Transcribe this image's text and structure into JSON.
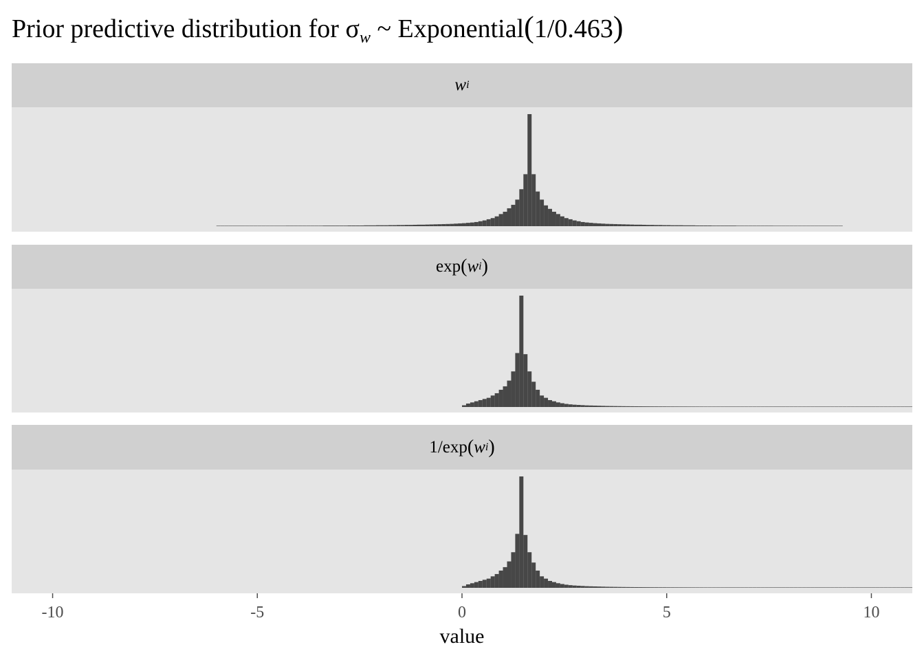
{
  "title_parts": {
    "prefix": "Prior predictive distribution for σ",
    "sub": "w",
    "middle": " ~ Exponential",
    "open": "(",
    "arg": "1/0.463",
    "close": ")"
  },
  "facets": [
    {
      "key": "w",
      "label_parts": {
        "pre": "",
        "open": "",
        "w": "w",
        "sub": "i",
        "close": ""
      }
    },
    {
      "key": "exp_w",
      "label_parts": {
        "pre": "exp",
        "open": "(",
        "w": "w",
        "sub": "i",
        "close": ")"
      }
    },
    {
      "key": "inv_exp_w",
      "label_parts": {
        "pre": "1/exp",
        "open": "(",
        "w": "w",
        "sub": "i",
        "close": ")"
      }
    }
  ],
  "colors": {
    "bar": "#474747",
    "panel": "#e5e5e5",
    "strip": "#d0d0d0",
    "tick": "#4d4d4d"
  },
  "chart_data": {
    "type": "bar",
    "subtype": "histogram (faceted, stacked vertically, shared x axis)",
    "xlabel": "value",
    "ylabel": "",
    "xlim": [
      -11,
      11
    ],
    "x_ticks": [
      -10,
      -5,
      0,
      5,
      10
    ],
    "x_tick_labels": [
      "-10",
      "-5",
      "0",
      "5",
      "10"
    ],
    "grid": false,
    "bin_width": 0.1,
    "series": [
      {
        "facet": "w",
        "bin_start": -6.0,
        "values": [
          0.2,
          0.2,
          0.2,
          0.2,
          0.2,
          0.3,
          0.3,
          0.3,
          0.3,
          0.3,
          0.3,
          0.3,
          0.3,
          0.3,
          0.3,
          0.3,
          0.3,
          0.4,
          0.4,
          0.4,
          0.4,
          0.4,
          0.4,
          0.4,
          0.4,
          0.4,
          0.5,
          0.5,
          0.5,
          0.5,
          0.5,
          0.5,
          0.6,
          0.6,
          0.6,
          0.6,
          0.7,
          0.7,
          0.7,
          0.8,
          0.8,
          0.8,
          0.9,
          0.9,
          1.0,
          1.0,
          1.1,
          1.1,
          1.2,
          1.3,
          1.3,
          1.4,
          1.5,
          1.6,
          1.7,
          1.8,
          1.9,
          2.0,
          2.2,
          2.4,
          2.6,
          2.9,
          3.2,
          3.6,
          4.3,
          5.0,
          6.0,
          7.0,
          8.5,
          10.5,
          12.5,
          15.5,
          18.5,
          23,
          32,
          45,
          97,
          45,
          30,
          23,
          18,
          15,
          12.5,
          10.5,
          8.5,
          7.0,
          6.0,
          5.0,
          4.3,
          3.6,
          3.2,
          2.9,
          2.6,
          2.4,
          2.2,
          2.0,
          1.9,
          1.8,
          1.7,
          1.6,
          1.5,
          1.4,
          1.3,
          1.3,
          1.2,
          1.1,
          1.1,
          1.0,
          1.0,
          0.9,
          0.9,
          0.8,
          0.8,
          0.8,
          0.7,
          0.7,
          0.7,
          0.6,
          0.6,
          0.6,
          0.6,
          0.5,
          0.5,
          0.5,
          0.5,
          0.5,
          0.5,
          0.4,
          0.4,
          0.4,
          0.4,
          0.4,
          0.4,
          0.4,
          0.4,
          0.4,
          0.3,
          0.3,
          0.3,
          0.3,
          0.3,
          0.3,
          0.3,
          0.3,
          0.3,
          0.3,
          0.3,
          0.3,
          0.2,
          0.2,
          0.2,
          0.2,
          0.2
        ]
      },
      {
        "facet": "exp_w",
        "bin_start": 0.0,
        "values": [
          1.5,
          3,
          4,
          5,
          6,
          7,
          8,
          10,
          12,
          15,
          18,
          23,
          31,
          47,
          97,
          46,
          31,
          22,
          15,
          10,
          8,
          6,
          5,
          4,
          3.3,
          2.7,
          2.3,
          2.0,
          1.8,
          1.6,
          1.4,
          1.3,
          1.2,
          1.1,
          1.0,
          0.9,
          0.85,
          0.8,
          0.75,
          0.7,
          0.66,
          0.63,
          0.6,
          0.58,
          0.55,
          0.53,
          0.51,
          0.5,
          0.48,
          0.47,
          0.45,
          0.44,
          0.43,
          0.42,
          0.41,
          0.4,
          0.39,
          0.38,
          0.37,
          0.36,
          0.35,
          0.34,
          0.33,
          0.32,
          0.31,
          0.3,
          0.3,
          0.29,
          0.28,
          0.28,
          0.27,
          0.27,
          0.26,
          0.26,
          0.25,
          0.25,
          0.24,
          0.24,
          0.23,
          0.23,
          0.22,
          0.22,
          0.22,
          0.21,
          0.21,
          0.21,
          0.2,
          0.2,
          0.2,
          0.2,
          0.19,
          0.19,
          0.19,
          0.19,
          0.18,
          0.18,
          0.18,
          0.18,
          0.17,
          0.17,
          0.17,
          0.17,
          0.17,
          0.16,
          0.16,
          0.16,
          0.16,
          0.16,
          0.15,
          0.15
        ]
      },
      {
        "facet": "inv_exp_w",
        "bin_start": 0.0,
        "values": [
          1.5,
          3,
          4,
          5,
          6,
          7,
          8,
          10,
          12,
          15,
          18,
          23,
          31,
          47,
          97,
          46,
          31,
          22,
          15,
          10,
          8,
          6,
          5,
          4,
          3.3,
          2.7,
          2.3,
          2.0,
          1.8,
          1.6,
          1.4,
          1.3,
          1.2,
          1.1,
          1.0,
          0.9,
          0.85,
          0.8,
          0.75,
          0.7,
          0.66,
          0.63,
          0.6,
          0.58,
          0.55,
          0.53,
          0.51,
          0.5,
          0.48,
          0.47,
          0.45,
          0.44,
          0.43,
          0.42,
          0.41,
          0.4,
          0.39,
          0.38,
          0.37,
          0.36,
          0.35,
          0.34,
          0.33,
          0.32,
          0.31,
          0.3,
          0.3,
          0.29,
          0.28,
          0.28,
          0.27,
          0.27,
          0.26,
          0.26,
          0.25,
          0.25,
          0.24,
          0.24,
          0.23,
          0.23,
          0.22,
          0.22,
          0.22,
          0.21,
          0.21,
          0.21,
          0.2,
          0.2,
          0.2,
          0.2,
          0.19,
          0.19,
          0.19,
          0.19,
          0.18,
          0.18,
          0.18,
          0.18,
          0.17,
          0.17,
          0.17,
          0.17,
          0.17,
          0.16,
          0.16,
          0.16,
          0.16,
          0.16,
          0.15,
          0.15
        ]
      }
    ]
  }
}
